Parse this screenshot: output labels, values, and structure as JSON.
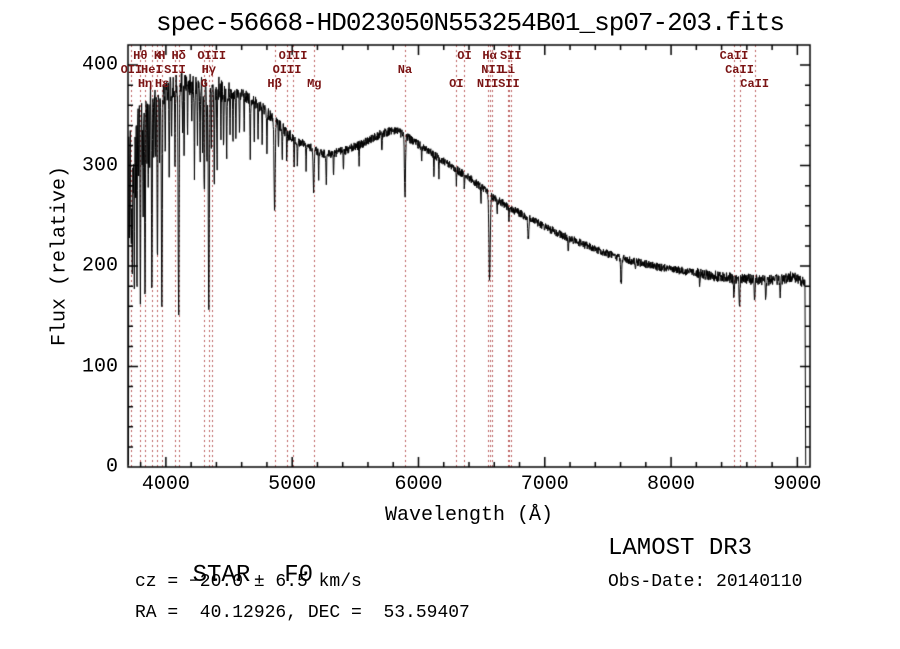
{
  "footer": {
    "object_type": "STAR",
    "subclass": "F0",
    "survey": "LAMOST DR3",
    "cz": "cz = −20.0 ± 6.5 km/s",
    "obs_date": "Obs-Date: 20140110",
    "coords": "RA =  40.12926, DEC =  53.59407"
  },
  "colors": {
    "background": "#ffffff",
    "axis": "#000000",
    "spectrum": "#000000",
    "marker_line": "#bc5f5f",
    "marker_label": "#7a1414"
  },
  "chart_data": {
    "type": "line",
    "title": "spec-56668-HD023050N553254B01_sp07-203.fits",
    "xlabel": "Wavelength (Å)",
    "ylabel": "Flux (relative)",
    "xlim": [
      3700,
      9100
    ],
    "ylim": [
      0,
      420
    ],
    "xticks": [
      4000,
      5000,
      6000,
      7000,
      8000,
      9000
    ],
    "yticks": [
      0,
      100,
      200,
      300,
      400
    ],
    "x_minor_step": 200,
    "y_minor_step": 20,
    "grid": false,
    "sample_range": [
      3706,
      9060
    ],
    "edges": {
      "left": [
        [
          3704,
          2
        ]
      ],
      "right": [
        [
          9062,
          120
        ],
        [
          9066,
          2
        ]
      ]
    },
    "noise_segments": [
      {
        "from": 3706,
        "to": 4500,
        "amp": 12
      },
      {
        "from": 4500,
        "to": 5000,
        "amp": 6
      },
      {
        "from": 5000,
        "to": 6000,
        "amp": 4.5
      },
      {
        "from": 6000,
        "to": 7000,
        "amp": 4
      },
      {
        "from": 7000,
        "to": 8200,
        "amp": 4
      },
      {
        "from": 8200,
        "to": 9060,
        "amp": 5.5
      }
    ],
    "continuum_points": [
      [
        3706,
        330
      ],
      [
        3720,
        352
      ],
      [
        3740,
        356
      ],
      [
        3760,
        362
      ],
      [
        3780,
        360
      ],
      [
        3800,
        364
      ],
      [
        3830,
        367
      ],
      [
        3860,
        369
      ],
      [
        3900,
        371
      ],
      [
        3940,
        369
      ],
      [
        3980,
        372
      ],
      [
        4020,
        376
      ],
      [
        4060,
        378
      ],
      [
        4100,
        380
      ],
      [
        4150,
        383
      ],
      [
        4200,
        382
      ],
      [
        4250,
        378
      ],
      [
        4300,
        375
      ],
      [
        4360,
        374
      ],
      [
        4420,
        377
      ],
      [
        4480,
        373
      ],
      [
        4540,
        370
      ],
      [
        4600,
        371
      ],
      [
        4660,
        367
      ],
      [
        4720,
        362
      ],
      [
        4780,
        355
      ],
      [
        4840,
        348
      ],
      [
        4900,
        340
      ],
      [
        4960,
        332
      ],
      [
        5020,
        326
      ],
      [
        5080,
        322
      ],
      [
        5140,
        318
      ],
      [
        5200,
        314
      ],
      [
        5260,
        312
      ],
      [
        5320,
        312
      ],
      [
        5380,
        314
      ],
      [
        5440,
        316
      ],
      [
        5500,
        319
      ],
      [
        5560,
        322
      ],
      [
        5620,
        326
      ],
      [
        5680,
        330
      ],
      [
        5740,
        333
      ],
      [
        5800,
        335
      ],
      [
        5850,
        333
      ],
      [
        5900,
        329
      ],
      [
        5950,
        325
      ],
      [
        6000,
        321
      ],
      [
        6060,
        316
      ],
      [
        6120,
        311
      ],
      [
        6180,
        306
      ],
      [
        6240,
        301
      ],
      [
        6300,
        296
      ],
      [
        6360,
        291
      ],
      [
        6420,
        286
      ],
      [
        6480,
        280
      ],
      [
        6540,
        274
      ],
      [
        6600,
        268
      ],
      [
        6660,
        263
      ],
      [
        6720,
        258
      ],
      [
        6780,
        254
      ],
      [
        6840,
        250
      ],
      [
        6900,
        246
      ],
      [
        6960,
        242
      ],
      [
        7020,
        238
      ],
      [
        7100,
        233
      ],
      [
        7200,
        227
      ],
      [
        7300,
        222
      ],
      [
        7400,
        217
      ],
      [
        7500,
        212
      ],
      [
        7600,
        208
      ],
      [
        7700,
        205
      ],
      [
        7800,
        202
      ],
      [
        7900,
        199
      ],
      [
        8000,
        197
      ],
      [
        8100,
        195
      ],
      [
        8200,
        193
      ],
      [
        8300,
        191
      ],
      [
        8400,
        189
      ],
      [
        8500,
        188
      ],
      [
        8600,
        187
      ],
      [
        8700,
        186
      ],
      [
        8800,
        186
      ],
      [
        8900,
        187
      ],
      [
        8960,
        190
      ],
      [
        9010,
        186
      ],
      [
        9060,
        184
      ]
    ],
    "absorption_lines_format": [
      "wavelength",
      "depth",
      "width"
    ],
    "absorption_lines": [
      [
        3712,
        100,
        5
      ],
      [
        3722,
        90,
        4
      ],
      [
        3727,
        130,
        5
      ],
      [
        3734,
        150,
        5
      ],
      [
        3742,
        80,
        4
      ],
      [
        3750,
        175,
        5
      ],
      [
        3760,
        90,
        4
      ],
      [
        3771,
        185,
        5
      ],
      [
        3784,
        70,
        4
      ],
      [
        3798,
        200,
        6
      ],
      [
        3812,
        60,
        4
      ],
      [
        3820,
        110,
        5
      ],
      [
        3835,
        210,
        6
      ],
      [
        3850,
        70,
        4
      ],
      [
        3860,
        95,
        5
      ],
      [
        3872,
        60,
        4
      ],
      [
        3889,
        210,
        6
      ],
      [
        3905,
        60,
        4
      ],
      [
        3920,
        70,
        4
      ],
      [
        3933,
        160,
        6
      ],
      [
        3950,
        60,
        4
      ],
      [
        3968,
        215,
        7
      ],
      [
        3995,
        55,
        4
      ],
      [
        4026,
        85,
        5
      ],
      [
        4045,
        60,
        4
      ],
      [
        4072,
        70,
        5
      ],
      [
        4101,
        225,
        8
      ],
      [
        4132,
        55,
        4
      ],
      [
        4144,
        75,
        4
      ],
      [
        4172,
        50,
        4
      ],
      [
        4205,
        55,
        4
      ],
      [
        4226,
        95,
        5
      ],
      [
        4250,
        55,
        4
      ],
      [
        4271,
        75,
        4
      ],
      [
        4290,
        60,
        4
      ],
      [
        4304,
        110,
        6
      ],
      [
        4325,
        70,
        4
      ],
      [
        4340,
        215,
        8
      ],
      [
        4360,
        55,
        4
      ],
      [
        4383,
        95,
        5
      ],
      [
        4405,
        80,
        5
      ],
      [
        4435,
        45,
        4
      ],
      [
        4457,
        50,
        4
      ],
      [
        4481,
        65,
        5
      ],
      [
        4508,
        40,
        4
      ],
      [
        4531,
        50,
        4
      ],
      [
        4554,
        40,
        4
      ],
      [
        4583,
        45,
        4
      ],
      [
        4620,
        40,
        4
      ],
      [
        4668,
        55,
        5
      ],
      [
        4700,
        40,
        4
      ],
      [
        4730,
        35,
        4
      ],
      [
        4762,
        35,
        4
      ],
      [
        4800,
        40,
        4
      ],
      [
        4861,
        90,
        9
      ],
      [
        4891,
        30,
        4
      ],
      [
        4921,
        35,
        4
      ],
      [
        4957,
        30,
        4
      ],
      [
        5016,
        30,
        4
      ],
      [
        5041,
        25,
        4
      ],
      [
        5110,
        25,
        4
      ],
      [
        5170,
        45,
        7
      ],
      [
        5210,
        25,
        4
      ],
      [
        5270,
        35,
        5
      ],
      [
        5328,
        25,
        4
      ],
      [
        5406,
        20,
        4
      ],
      [
        5530,
        20,
        4
      ],
      [
        5710,
        20,
        4
      ],
      [
        5893,
        62,
        8
      ],
      [
        6025,
        18,
        4
      ],
      [
        6122,
        22,
        4
      ],
      [
        6162,
        18,
        4
      ],
      [
        6300,
        18,
        4
      ],
      [
        6363,
        14,
        4
      ],
      [
        6495,
        18,
        4
      ],
      [
        6563,
        88,
        10
      ],
      [
        6623,
        12,
        4
      ],
      [
        6717,
        14,
        4
      ],
      [
        6870,
        22,
        8
      ],
      [
        7186,
        14,
        6
      ],
      [
        7605,
        26,
        9
      ],
      [
        7718,
        10,
        4
      ],
      [
        8227,
        12,
        5
      ],
      [
        8498,
        20,
        6
      ],
      [
        8542,
        28,
        7
      ],
      [
        8662,
        25,
        7
      ],
      [
        8750,
        18,
        6
      ],
      [
        8865,
        16,
        6
      ]
    ],
    "spectral_markers": [
      {
        "label": "Hθ",
        "wavelength": 3798,
        "row": 0
      },
      {
        "label": "K",
        "wavelength": 3933,
        "row": 0
      },
      {
        "label": "H",
        "wavelength": 3968,
        "row": 0
      },
      {
        "label": "Hδ",
        "wavelength": 4101,
        "row": 0
      },
      {
        "label": "OIII",
        "wavelength": 4363,
        "row": 0
      },
      {
        "label": "OIII",
        "wavelength": 5007,
        "row": 0
      },
      {
        "label": "OI",
        "wavelength": 6364,
        "row": 0
      },
      {
        "label": "Hα",
        "wavelength": 6563,
        "row": 0
      },
      {
        "label": "SII",
        "wavelength": 6731,
        "row": 0
      },
      {
        "label": "CaII",
        "wavelength": 8498,
        "row": 0
      },
      {
        "label": "OII",
        "wavelength": 3727,
        "row": 1
      },
      {
        "label": "HeI",
        "wavelength": 3889,
        "row": 1
      },
      {
        "label": "SII",
        "wavelength": 4072,
        "row": 1
      },
      {
        "label": "Hγ",
        "wavelength": 4340,
        "row": 1
      },
      {
        "label": "OIII",
        "wavelength": 4959,
        "row": 1
      },
      {
        "label": "Na",
        "wavelength": 5893,
        "row": 1
      },
      {
        "label": "NII",
        "wavelength": 6583,
        "row": 1
      },
      {
        "label": "Li",
        "wavelength": 6708,
        "row": 1
      },
      {
        "label": "CaII",
        "wavelength": 8542,
        "row": 1
      },
      {
        "label": "Hη",
        "wavelength": 3835,
        "row": 2
      },
      {
        "label": "Hε",
        "wavelength": 3970,
        "row": 2
      },
      {
        "label": "G",
        "wavelength": 4304,
        "row": 2
      },
      {
        "label": "Hβ",
        "wavelength": 4861,
        "row": 2
      },
      {
        "label": "Mg",
        "wavelength": 5175,
        "row": 2
      },
      {
        "label": "OI",
        "wavelength": 6300,
        "row": 2
      },
      {
        "label": "NII",
        "wavelength": 6548,
        "row": 2
      },
      {
        "label": "SII",
        "wavelength": 6716,
        "row": 2
      },
      {
        "label": "CaII",
        "wavelength": 8662,
        "row": 2
      }
    ]
  }
}
